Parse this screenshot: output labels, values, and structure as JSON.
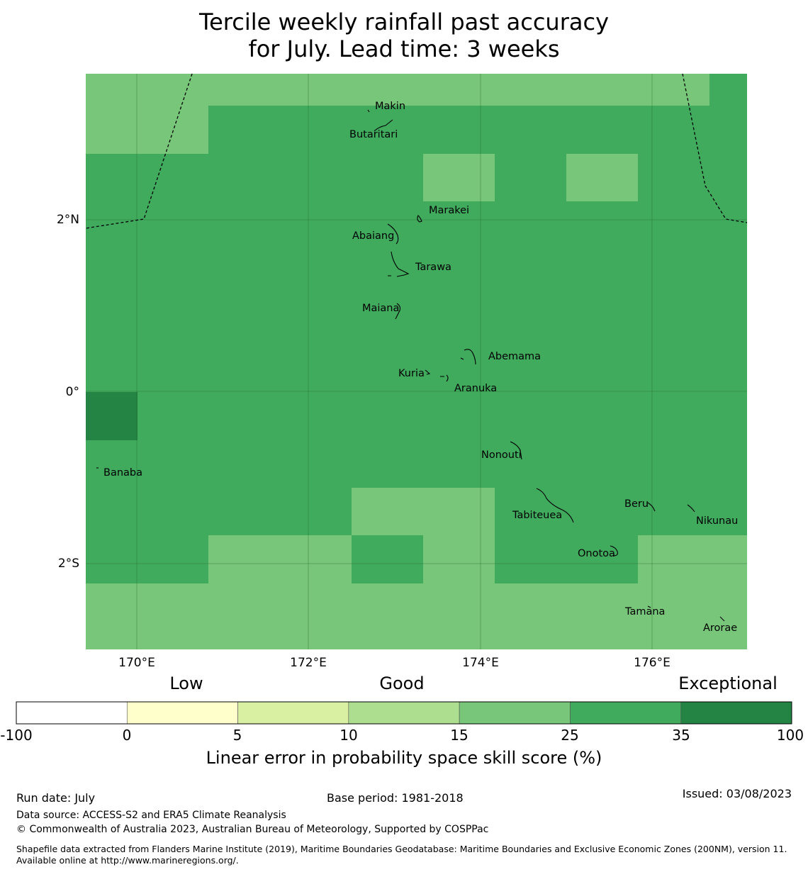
{
  "title": {
    "line1": "Tercile weekly rainfall past accuracy",
    "line2": "for July. Lead time: 3 weeks"
  },
  "map": {
    "lon_ticks": [
      "170°E",
      "172°E",
      "174°E",
      "176°E"
    ],
    "lat_ticks": [
      "2°N",
      "0°",
      "2°S"
    ],
    "colors": {
      "c15_25": "#78c679",
      "c25_35": "#41ab5d",
      "c35_100": "#238443"
    },
    "places": [
      {
        "name": "Makin"
      },
      {
        "name": "Butaritari"
      },
      {
        "name": "Marakei"
      },
      {
        "name": "Abaiang"
      },
      {
        "name": "Tarawa"
      },
      {
        "name": "Maiana"
      },
      {
        "name": "Abemama"
      },
      {
        "name": "Kuria"
      },
      {
        "name": "Aranuka"
      },
      {
        "name": "Banaba"
      },
      {
        "name": "Nonouti"
      },
      {
        "name": "Beru"
      },
      {
        "name": "Tabiteuea"
      },
      {
        "name": "Nikunau"
      },
      {
        "name": "Onotoa"
      },
      {
        "name": "Tamana"
      },
      {
        "name": "Arorae"
      }
    ]
  },
  "colorbar": {
    "categories": [
      "Low",
      "Good",
      "Exceptional"
    ],
    "ticks": [
      "-100",
      "0",
      "5",
      "10",
      "15",
      "25",
      "35",
      "100"
    ],
    "colors": [
      "#ffffff",
      "#ffffcc",
      "#d9f0a3",
      "#addd8e",
      "#78c679",
      "#41ab5d",
      "#238443"
    ],
    "label": "Linear error in probability space skill score (%)"
  },
  "footer": {
    "run_date": "Run date: July",
    "base_period": "Base period: 1981-2018",
    "issued": "Issued: 03/08/2023",
    "data_source": "Data source: ACCESS-S2 and ERA5 Climate Reanalysis",
    "copyright": "© Commonwealth of Australia 2023, Australian Bureau of Meteorology, Supported by COSPPac",
    "shapefile": "Shapefile data extracted from Flanders Marine Institute (2019), Maritime Boundaries Geodatabase: Maritime Boundaries and Exclusive Economic Zones (200NM), version 11. Available online at http://www.marineregions.org/."
  }
}
